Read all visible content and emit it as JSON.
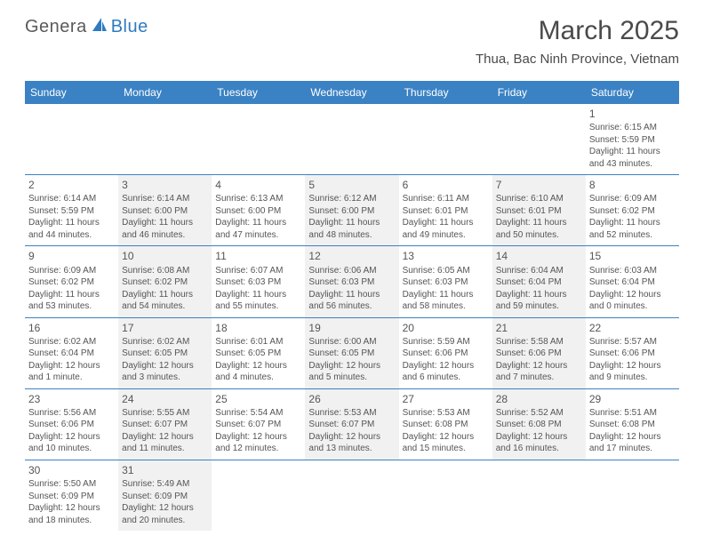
{
  "brand": {
    "part1": "Genera",
    "part2": "Blue",
    "shape_color": "#2f7bbf",
    "text1_color": "#5a5a5a"
  },
  "title": "March 2025",
  "location": "Thua, Bac Ninh Province, Vietnam",
  "header_bg": "#3b82c4",
  "header_fg": "#ffffff",
  "shade_bg": "#f1f1f1",
  "rule_color": "#3b82c4",
  "text_color": "#555555",
  "day_names": [
    "Sunday",
    "Monday",
    "Tuesday",
    "Wednesday",
    "Thursday",
    "Friday",
    "Saturday"
  ],
  "weeks": [
    [
      {
        "empty": true
      },
      {
        "empty": true
      },
      {
        "empty": true
      },
      {
        "empty": true
      },
      {
        "empty": true
      },
      {
        "empty": true
      },
      {
        "day": 1,
        "shade": false,
        "sunrise": "6:15 AM",
        "sunset": "5:59 PM",
        "daylight": "11 hours and 43 minutes."
      }
    ],
    [
      {
        "day": 2,
        "shade": false,
        "sunrise": "6:14 AM",
        "sunset": "5:59 PM",
        "daylight": "11 hours and 44 minutes."
      },
      {
        "day": 3,
        "shade": true,
        "sunrise": "6:14 AM",
        "sunset": "6:00 PM",
        "daylight": "11 hours and 46 minutes."
      },
      {
        "day": 4,
        "shade": false,
        "sunrise": "6:13 AM",
        "sunset": "6:00 PM",
        "daylight": "11 hours and 47 minutes."
      },
      {
        "day": 5,
        "shade": true,
        "sunrise": "6:12 AM",
        "sunset": "6:00 PM",
        "daylight": "11 hours and 48 minutes."
      },
      {
        "day": 6,
        "shade": false,
        "sunrise": "6:11 AM",
        "sunset": "6:01 PM",
        "daylight": "11 hours and 49 minutes."
      },
      {
        "day": 7,
        "shade": true,
        "sunrise": "6:10 AM",
        "sunset": "6:01 PM",
        "daylight": "11 hours and 50 minutes."
      },
      {
        "day": 8,
        "shade": false,
        "sunrise": "6:09 AM",
        "sunset": "6:02 PM",
        "daylight": "11 hours and 52 minutes."
      }
    ],
    [
      {
        "day": 9,
        "shade": false,
        "sunrise": "6:09 AM",
        "sunset": "6:02 PM",
        "daylight": "11 hours and 53 minutes."
      },
      {
        "day": 10,
        "shade": true,
        "sunrise": "6:08 AM",
        "sunset": "6:02 PM",
        "daylight": "11 hours and 54 minutes."
      },
      {
        "day": 11,
        "shade": false,
        "sunrise": "6:07 AM",
        "sunset": "6:03 PM",
        "daylight": "11 hours and 55 minutes."
      },
      {
        "day": 12,
        "shade": true,
        "sunrise": "6:06 AM",
        "sunset": "6:03 PM",
        "daylight": "11 hours and 56 minutes."
      },
      {
        "day": 13,
        "shade": false,
        "sunrise": "6:05 AM",
        "sunset": "6:03 PM",
        "daylight": "11 hours and 58 minutes."
      },
      {
        "day": 14,
        "shade": true,
        "sunrise": "6:04 AM",
        "sunset": "6:04 PM",
        "daylight": "11 hours and 59 minutes."
      },
      {
        "day": 15,
        "shade": false,
        "sunrise": "6:03 AM",
        "sunset": "6:04 PM",
        "daylight": "12 hours and 0 minutes."
      }
    ],
    [
      {
        "day": 16,
        "shade": false,
        "sunrise": "6:02 AM",
        "sunset": "6:04 PM",
        "daylight": "12 hours and 1 minute."
      },
      {
        "day": 17,
        "shade": true,
        "sunrise": "6:02 AM",
        "sunset": "6:05 PM",
        "daylight": "12 hours and 3 minutes."
      },
      {
        "day": 18,
        "shade": false,
        "sunrise": "6:01 AM",
        "sunset": "6:05 PM",
        "daylight": "12 hours and 4 minutes."
      },
      {
        "day": 19,
        "shade": true,
        "sunrise": "6:00 AM",
        "sunset": "6:05 PM",
        "daylight": "12 hours and 5 minutes."
      },
      {
        "day": 20,
        "shade": false,
        "sunrise": "5:59 AM",
        "sunset": "6:06 PM",
        "daylight": "12 hours and 6 minutes."
      },
      {
        "day": 21,
        "shade": true,
        "sunrise": "5:58 AM",
        "sunset": "6:06 PM",
        "daylight": "12 hours and 7 minutes."
      },
      {
        "day": 22,
        "shade": false,
        "sunrise": "5:57 AM",
        "sunset": "6:06 PM",
        "daylight": "12 hours and 9 minutes."
      }
    ],
    [
      {
        "day": 23,
        "shade": false,
        "sunrise": "5:56 AM",
        "sunset": "6:06 PM",
        "daylight": "12 hours and 10 minutes."
      },
      {
        "day": 24,
        "shade": true,
        "sunrise": "5:55 AM",
        "sunset": "6:07 PM",
        "daylight": "12 hours and 11 minutes."
      },
      {
        "day": 25,
        "shade": false,
        "sunrise": "5:54 AM",
        "sunset": "6:07 PM",
        "daylight": "12 hours and 12 minutes."
      },
      {
        "day": 26,
        "shade": true,
        "sunrise": "5:53 AM",
        "sunset": "6:07 PM",
        "daylight": "12 hours and 13 minutes."
      },
      {
        "day": 27,
        "shade": false,
        "sunrise": "5:53 AM",
        "sunset": "6:08 PM",
        "daylight": "12 hours and 15 minutes."
      },
      {
        "day": 28,
        "shade": true,
        "sunrise": "5:52 AM",
        "sunset": "6:08 PM",
        "daylight": "12 hours and 16 minutes."
      },
      {
        "day": 29,
        "shade": false,
        "sunrise": "5:51 AM",
        "sunset": "6:08 PM",
        "daylight": "12 hours and 17 minutes."
      }
    ],
    [
      {
        "day": 30,
        "shade": false,
        "sunrise": "5:50 AM",
        "sunset": "6:09 PM",
        "daylight": "12 hours and 18 minutes."
      },
      {
        "day": 31,
        "shade": true,
        "sunrise": "5:49 AM",
        "sunset": "6:09 PM",
        "daylight": "12 hours and 20 minutes."
      },
      {
        "empty": true
      },
      {
        "empty": true
      },
      {
        "empty": true
      },
      {
        "empty": true
      },
      {
        "empty": true
      }
    ]
  ],
  "labels": {
    "sunrise": "Sunrise:",
    "sunset": "Sunset:",
    "daylight": "Daylight:"
  }
}
